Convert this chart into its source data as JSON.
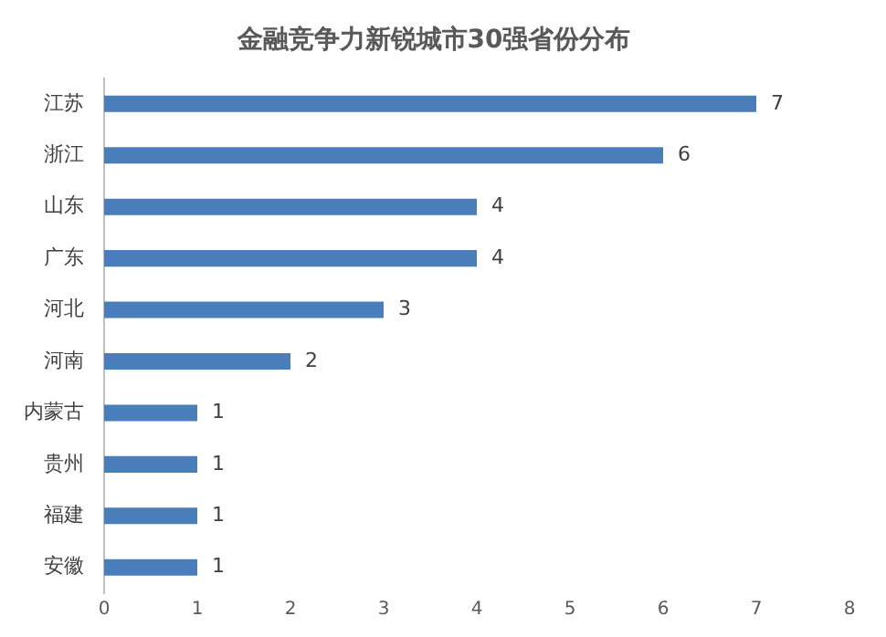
{
  "chart_data": {
    "type": "bar",
    "orientation": "horizontal",
    "title": "金融竞争力新锐城市30强省份分布",
    "categories": [
      "江苏",
      "浙江",
      "山东",
      "广东",
      "河北",
      "河南",
      "内蒙古",
      "贵州",
      "福建",
      "安徽"
    ],
    "values": [
      7,
      6,
      4,
      4,
      3,
      2,
      1,
      1,
      1,
      1
    ],
    "color": "#4a7ebb",
    "xlim": [
      0,
      8
    ],
    "xticks": [
      0,
      1,
      2,
      3,
      4,
      5,
      6,
      7,
      8
    ],
    "data_labels": true
  }
}
